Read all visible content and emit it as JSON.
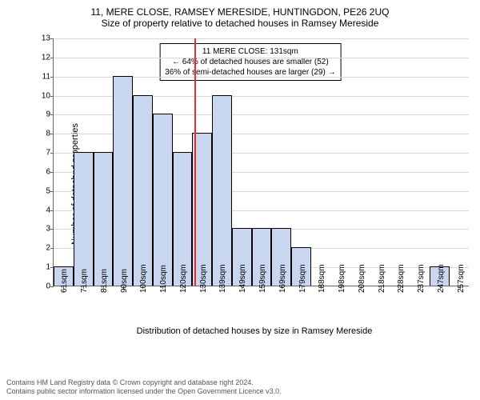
{
  "chart": {
    "type": "histogram",
    "title_line1": "11, MERE CLOSE, RAMSEY MERESIDE, HUNTINGDON, PE26 2UQ",
    "title_line2": "Size of property relative to detached houses in Ramsey Mereside",
    "title_fontsize": 12,
    "y_label": "Number of detached properties",
    "x_label": "Distribution of detached houses by size in Ramsey Mereside",
    "label_fontsize": 11,
    "background_color": "#ffffff",
    "grid_color": "#d9d9d9",
    "bar_fill": "#c9d6ef",
    "bar_stroke": "#000000",
    "ylim": [
      0,
      13
    ],
    "ytick_step": 1,
    "categories": [
      "61sqm",
      "71sqm",
      "81sqm",
      "90sqm",
      "100sqm",
      "110sqm",
      "120sqm",
      "130sqm",
      "139sqm",
      "149sqm",
      "159sqm",
      "169sqm",
      "179sqm",
      "188sqm",
      "198sqm",
      "208sqm",
      "218sqm",
      "228sqm",
      "237sqm",
      "247sqm",
      "257sqm"
    ],
    "values": [
      1,
      7,
      7,
      11,
      10,
      9,
      7,
      8,
      10,
      3,
      3,
      3,
      2,
      0,
      0,
      0,
      0,
      0,
      0,
      1,
      0
    ],
    "reference_line": {
      "position_category_index": 7,
      "color": "#ee2b2b",
      "value_label": "131sqm"
    },
    "annotation": {
      "line1": "11 MERE CLOSE: 131sqm",
      "line2": "← 64% of detached houses are smaller (52)",
      "line3": "36% of semi-detached houses are larger (29) →"
    }
  },
  "footer": {
    "line1": "Contains HM Land Registry data © Crown copyright and database right 2024.",
    "line2": "Contains public sector information licensed under the Open Government Licence v3.0."
  }
}
